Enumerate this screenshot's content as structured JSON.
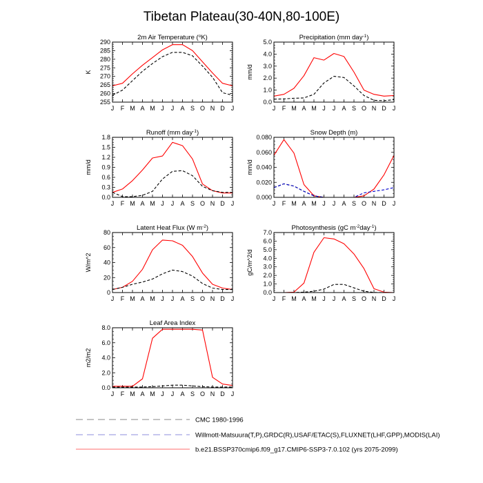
{
  "figure_title": "Tibetan Plateau(30-40N,80-100E)",
  "legend": [
    {
      "label": "CMC 1980-1996",
      "color": "#000000",
      "dash": "dashed"
    },
    {
      "label": "Willmott-Matsuura(T,P),GRDC(R),USAF/ETAC(S),FLUXNET(LHF,GPP),MODIS(LAI)",
      "color": "#0000cc",
      "dash": "dashed"
    },
    {
      "label": "b.e21.BSSP370cmip6.f09_g17.CMIP6-SSP3-7.0.102 (yrs 2075-2099)",
      "color": "#ff0000",
      "dash": "solid"
    }
  ],
  "chart_data": [
    {
      "type": "line",
      "title": "2m Air Temperature (",
      "title_sup": "o",
      "title_after": "K)",
      "ylabel": "K",
      "categories": [
        "J",
        "F",
        "M",
        "A",
        "M",
        "J",
        "J",
        "A",
        "S",
        "O",
        "N",
        "D",
        "J"
      ],
      "ylim": [
        255,
        290
      ],
      "yticks": [
        255,
        260,
        265,
        270,
        275,
        280,
        285,
        290
      ],
      "ytick_labels": [
        "255",
        "260",
        "265",
        "270",
        "275",
        "280",
        "285",
        "290"
      ],
      "series": [
        {
          "values": [
            264.5,
            266,
            271.5,
            276.5,
            281,
            285.5,
            288.5,
            288.5,
            285,
            278.5,
            272,
            266,
            264.5
          ],
          "color": "#ff0000",
          "dash": "solid"
        },
        {
          "values": [
            259,
            262,
            267.5,
            273,
            277.5,
            281.5,
            284,
            284,
            282,
            276,
            269.5,
            260.5,
            259
          ],
          "color": "#000000",
          "dash": "dashed"
        }
      ]
    },
    {
      "type": "line",
      "title": "Precipitation (mm day",
      "title_sup": "-1",
      "title_after": ")",
      "ylabel": "mm/d",
      "categories": [
        "J",
        "F",
        "M",
        "A",
        "M",
        "J",
        "J",
        "A",
        "S",
        "O",
        "N",
        "D",
        "J"
      ],
      "ylim": [
        0,
        5
      ],
      "yticks": [
        0,
        1,
        2,
        3,
        4,
        5
      ],
      "ytick_labels": [
        "0.0",
        "1.0",
        "2.0",
        "3.0",
        "4.0",
        "5.0"
      ],
      "series": [
        {
          "values": [
            0.5,
            0.65,
            1.15,
            2.2,
            3.7,
            3.5,
            4.05,
            3.8,
            2.5,
            1.0,
            0.65,
            0.5,
            0.55
          ],
          "color": "#ff0000",
          "dash": "solid"
        },
        {
          "values": [
            0.25,
            0.27,
            0.32,
            0.35,
            0.65,
            1.6,
            2.15,
            2.05,
            1.35,
            0.55,
            0.15,
            0.12,
            0.2
          ],
          "color": "#000000",
          "dash": "dashed"
        }
      ]
    },
    {
      "type": "line",
      "title": "Runoff (mm day",
      "title_sup": "-1",
      "title_after": ")",
      "ylabel": "mm/d",
      "categories": [
        "J",
        "F",
        "M",
        "A",
        "M",
        "J",
        "J",
        "A",
        "S",
        "O",
        "N",
        "D",
        "J"
      ],
      "ylim": [
        0,
        1.8
      ],
      "yticks": [
        0,
        0.3,
        0.6,
        0.9,
        1.2,
        1.5,
        1.8
      ],
      "ytick_labels": [
        "0.0",
        "0.3",
        "0.6",
        "0.9",
        "1.2",
        "1.5",
        "1.8"
      ],
      "series": [
        {
          "values": [
            0.15,
            0.25,
            0.5,
            0.82,
            1.18,
            1.24,
            1.65,
            1.55,
            1.15,
            0.4,
            0.2,
            0.13,
            0.13
          ],
          "color": "#ff0000",
          "dash": "solid"
        },
        {
          "values": [
            0.15,
            0.02,
            0.02,
            0.06,
            0.18,
            0.55,
            0.78,
            0.8,
            0.65,
            0.33,
            0.2,
            0.15,
            0.15
          ],
          "color": "#000000",
          "dash": "dashed"
        }
      ]
    },
    {
      "type": "line",
      "title": "Snow Depth (m)",
      "title_sup": "",
      "title_after": "",
      "ylabel": "mm/d",
      "categories": [
        "J",
        "F",
        "M",
        "A",
        "M",
        "J",
        "J",
        "A",
        "S",
        "O",
        "N",
        "D",
        "J"
      ],
      "ylim": [
        0,
        0.08
      ],
      "yticks": [
        0,
        0.02,
        0.04,
        0.06,
        0.08
      ],
      "ytick_labels": [
        "0.000",
        "0.020",
        "0.040",
        "0.060",
        "0.080"
      ],
      "series": [
        {
          "values": [
            0.056,
            0.077,
            0.059,
            0.017,
            0.002,
            0.0,
            0.0,
            0.0,
            0.0,
            0.002,
            0.011,
            0.03,
            0.056
          ],
          "color": "#ff0000",
          "dash": "solid"
        },
        {
          "values": [
            0.013,
            0.018,
            0.015,
            0.008,
            0.002,
            0.0,
            0.0,
            0.0,
            0.0,
            0.0,
            0.0,
            0.0,
            0.0
          ],
          "color": "#000000",
          "dash": "dashed"
        },
        {
          "values": [
            0.013,
            0.018,
            0.015,
            0.008,
            0.002,
            0.0,
            0.0,
            0.0,
            0.0,
            0.006,
            0.008,
            0.01,
            0.013
          ],
          "color": "#0000cc",
          "dash": "dashed"
        }
      ]
    },
    {
      "type": "line",
      "title": "Latent Heat Flux (W m",
      "title_sup": "-2",
      "title_after": ")",
      "ylabel": "W/m^2",
      "categories": [
        "J",
        "F",
        "M",
        "A",
        "M",
        "J",
        "J",
        "A",
        "S",
        "O",
        "N",
        "D",
        "J"
      ],
      "ylim": [
        0,
        80
      ],
      "yticks": [
        0,
        20,
        40,
        60,
        80
      ],
      "ytick_labels": [
        "0",
        "20",
        "40",
        "60",
        "80"
      ],
      "series": [
        {
          "values": [
            4,
            7,
            15,
            31,
            57,
            70,
            69,
            63,
            48,
            26,
            11,
            6,
            4
          ],
          "color": "#ff0000",
          "dash": "solid"
        },
        {
          "values": [
            4,
            7,
            11,
            14,
            18,
            25,
            30,
            28,
            22,
            12,
            6,
            4,
            4
          ],
          "color": "#000000",
          "dash": "dashed"
        }
      ]
    },
    {
      "type": "line",
      "title": "Photosynthesis (gC m",
      "title_sup": "-2",
      "title_after": "day",
      "title_sup2": "-1",
      "title_after2": ")",
      "ylabel": "gC/m^2/d",
      "categories": [
        "J",
        "F",
        "M",
        "A",
        "M",
        "J",
        "J",
        "A",
        "S",
        "O",
        "N",
        "D",
        "J"
      ],
      "ylim": [
        0,
        7
      ],
      "yticks": [
        0,
        1,
        2,
        3,
        4,
        5,
        6,
        7
      ],
      "ytick_labels": [
        "0.0",
        "1.0",
        "2.0",
        "3.0",
        "4.0",
        "5.0",
        "6.0",
        "7.0"
      ],
      "series": [
        {
          "values": [
            0.0,
            0.0,
            0.05,
            1.1,
            4.7,
            6.4,
            6.25,
            5.7,
            4.5,
            2.8,
            0.45,
            0.05,
            0.0
          ],
          "color": "#ff0000",
          "dash": "solid"
        },
        {
          "values": [
            0.0,
            0.0,
            0.0,
            0.05,
            0.15,
            0.4,
            0.95,
            0.95,
            0.55,
            0.15,
            0.02,
            0.0,
            0.0
          ],
          "color": "#000000",
          "dash": "dashed"
        }
      ]
    },
    {
      "type": "line",
      "title": "Leaf Area Index",
      "title_sup": "",
      "title_after": "",
      "ylabel": "m2/m2",
      "categories": [
        "J",
        "F",
        "M",
        "A",
        "M",
        "J",
        "J",
        "A",
        "S",
        "O",
        "N",
        "D",
        "J"
      ],
      "ylim": [
        0,
        8
      ],
      "yticks": [
        0,
        2,
        4,
        6,
        8
      ],
      "ytick_labels": [
        "0.0",
        "2.0",
        "4.0",
        "6.0",
        "8.0"
      ],
      "series": [
        {
          "values": [
            0.2,
            0.2,
            0.2,
            1.2,
            6.6,
            7.8,
            7.8,
            7.8,
            7.8,
            7.7,
            1.4,
            0.5,
            0.3
          ],
          "color": "#ff0000",
          "dash": "solid"
        },
        {
          "values": [
            0.1,
            0.1,
            0.1,
            0.1,
            0.15,
            0.25,
            0.35,
            0.35,
            0.25,
            0.15,
            0.1,
            0.1,
            0.1
          ],
          "color": "#000000",
          "dash": "dashed"
        }
      ]
    }
  ]
}
